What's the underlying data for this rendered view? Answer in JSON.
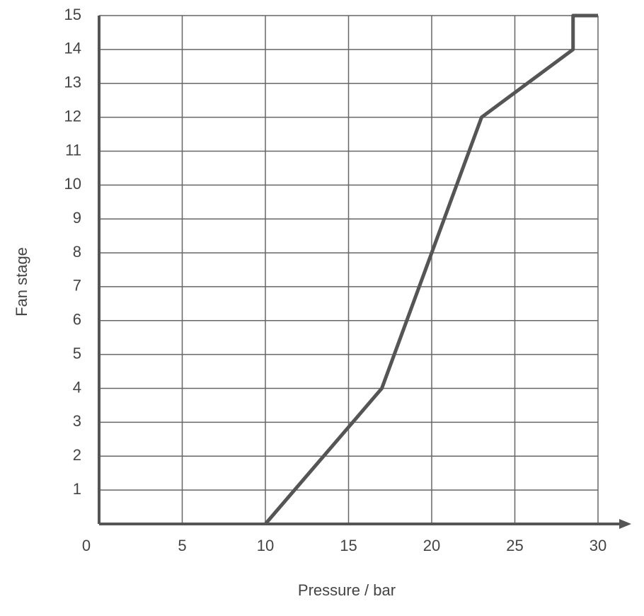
{
  "chart_data": {
    "type": "line",
    "x_label": "Pressure / bar",
    "y_label": "Fan stage",
    "x": [
      10,
      17,
      23,
      28.5,
      28.5,
      30
    ],
    "values": [
      0,
      4,
      12,
      14,
      15,
      15
    ],
    "color": "#555555",
    "xlim": [
      0,
      30
    ],
    "ylim": [
      0,
      15
    ],
    "xticks": [
      0,
      5,
      10,
      15,
      20,
      25,
      30
    ],
    "yticks": [
      1,
      2,
      3,
      4,
      5,
      6,
      7,
      8,
      9,
      10,
      11,
      12,
      13,
      14,
      15
    ],
    "grid": true
  }
}
